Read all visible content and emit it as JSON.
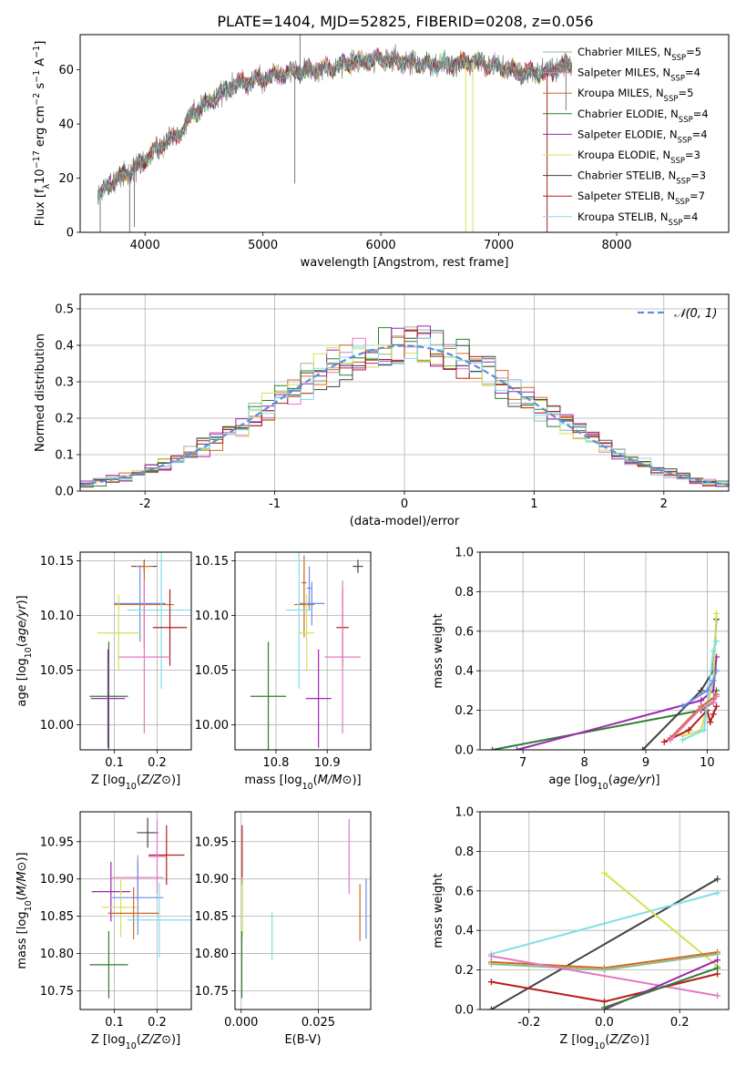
{
  "figure": {
    "title": "PLATE=1404, MJD=52825, FIBERID=0208, z=0.056"
  },
  "colors": {
    "Chabrier MILES": "#8fbc8f",
    "Salpeter MILES": "#e377c2",
    "Kroupa MILES": "#d2691e",
    "Chabrier ELODIE": "#2e7d32",
    "Salpeter ELODIE": "#9c27b0",
    "Kroupa ELODIE": "#d4e157",
    "Chabrier STELIB": "#424242",
    "Salpeter STELIB": "#b71c1c",
    "Kroupa STELIB": "#80deea",
    "gaussian": "#5b8fd8",
    "extra blue": "#6a8ee8"
  },
  "chart_data": [
    {
      "id": "spectrum",
      "type": "line",
      "xlabel": "wavelength [Angstrom, rest frame]",
      "ylabel": "Flux [f_λ10^-17 erg cm^-2 s^-1 A^-1]",
      "xlim": [
        3450,
        8950
      ],
      "ylim": [
        0,
        73
      ],
      "xticks": [
        4000,
        5000,
        6000,
        7000,
        8000
      ],
      "yticks": [
        0,
        20,
        40,
        60
      ],
      "grid": false,
      "legend_placement": "top-right",
      "legend": [
        {
          "model": "Chabrier MILES",
          "label": "Chabrier MILES, N_SSP=5"
        },
        {
          "model": "Salpeter MILES",
          "label": "Salpeter MILES, N_SSP=4"
        },
        {
          "model": "Kroupa MILES",
          "label": "Kroupa MILES, N_SSP=5"
        },
        {
          "model": "Chabrier ELODIE",
          "label": "Chabrier ELODIE, N_SSP=4"
        },
        {
          "model": "Salpeter ELODIE",
          "label": "Salpeter ELODIE, N_SSP=4"
        },
        {
          "model": "Kroupa ELODIE",
          "label": "Kroupa ELODIE, N_SSP=3"
        },
        {
          "model": "Chabrier STELIB",
          "label": "Chabrier STELIB, N_SSP=3"
        },
        {
          "model": "Salpeter STELIB",
          "label": "Salpeter STELIB, N_SSP=7"
        },
        {
          "model": "Kroupa STELIB",
          "label": "Kroupa STELIB, N_SSP=4"
        }
      ],
      "continuum": {
        "x": [
          3600,
          3700,
          3800,
          3900,
          4000,
          4100,
          4200,
          4300,
          4400,
          4600,
          4800,
          5000,
          5200,
          5400,
          5600,
          5800,
          6000,
          6200,
          6400,
          6600,
          6800,
          7000,
          7200,
          7400,
          7600
        ],
        "y": [
          13,
          18,
          21,
          23,
          27,
          31,
          34,
          37,
          44,
          50,
          55,
          57,
          59,
          60,
          61,
          63,
          64,
          63,
          62,
          62,
          63,
          61,
          59,
          59,
          62
        ]
      },
      "spikes": [
        {
          "x": 3620,
          "y": 0
        },
        {
          "x": 3870,
          "y": 0
        },
        {
          "x": 3910,
          "y": 2
        },
        {
          "x": 5270,
          "y": 18
        },
        {
          "x": 5315,
          "y": 73
        },
        {
          "x": 6720,
          "y": 0
        },
        {
          "x": 6780,
          "y": 0
        },
        {
          "x": 7410,
          "y": 0
        },
        {
          "x": 7570,
          "y": 45
        }
      ]
    },
    {
      "id": "residuals",
      "type": "histogram",
      "xlabel": "(data-model)/error",
      "ylabel": "Normed distribution",
      "xlim": [
        -2.5,
        2.5
      ],
      "ylim": [
        0,
        0.54
      ],
      "xticks": [
        -2,
        -1,
        0,
        1,
        2
      ],
      "yticks": [
        0.0,
        0.1,
        0.2,
        0.3,
        0.4,
        0.5
      ],
      "grid": true,
      "legend_placement": "top-right",
      "gaussian_label": "𝒩(0, 1)",
      "bin_width": 0.1
    },
    {
      "id": "age_vs_Z",
      "type": "errorbar",
      "xlabel": "Z [log10(Z/Z⊙)]",
      "ylabel": "age [log10(age/yr)]",
      "xlim": [
        0.02,
        0.28
      ],
      "ylim": [
        9.977,
        10.158
      ],
      "xticks": [
        0.1,
        0.2
      ],
      "yticks": [
        10.0,
        10.05,
        10.1,
        10.15
      ],
      "grid": true,
      "points": [
        {
          "model": "Chabrier STELIB",
          "x": 0.17,
          "xerr": 0.03,
          "y": 10.145,
          "yerr": 0.006
        },
        {
          "model": "Kroupa MILES",
          "x": 0.17,
          "xerr": 0.02,
          "y": 10.145,
          "yerr": 0.005
        },
        {
          "model": "extra blue",
          "x": 0.16,
          "xerr": 0.06,
          "y": 10.111,
          "yerr": 0.035
        },
        {
          "model": "Kroupa MILES",
          "x": 0.17,
          "xerr": 0.07,
          "y": 10.11,
          "yerr": 0.04
        },
        {
          "model": "Kroupa STELIB",
          "x": 0.21,
          "xerr": 0.08,
          "y": 10.105,
          "yerr": 0.072
        },
        {
          "model": "Salpeter STELIB",
          "x": 0.23,
          "xerr": 0.04,
          "y": 10.089,
          "yerr": 0.035
        },
        {
          "model": "Kroupa ELODIE",
          "x": 0.11,
          "xerr": 0.05,
          "y": 10.084,
          "yerr": 0.035
        },
        {
          "model": "Salpeter MILES",
          "x": 0.17,
          "xerr": 0.06,
          "y": 10.062,
          "yerr": 0.07
        },
        {
          "model": "Chabrier ELODIE",
          "x": 0.087,
          "xerr": 0.045,
          "y": 10.026,
          "yerr": 0.05
        },
        {
          "model": "Salpeter ELODIE",
          "x": 0.085,
          "xerr": 0.04,
          "y": 10.024,
          "yerr": 0.045
        }
      ]
    },
    {
      "id": "age_vs_mass",
      "type": "errorbar",
      "xlabel": "mass [log10(M/M⊙)]",
      "ylabel": "",
      "xlim": [
        10.72,
        10.985
      ],
      "ylim": [
        9.977,
        10.158
      ],
      "xticks": [
        10.8,
        10.9
      ],
      "yticks": [
        10.0,
        10.05,
        10.1,
        10.15
      ],
      "grid": true,
      "points": [
        {
          "model": "Chabrier STELIB",
          "x": 10.96,
          "xerr": 0.01,
          "y": 10.145,
          "yerr": 0.006
        },
        {
          "model": "Kroupa MILES",
          "x": 10.855,
          "xerr": 0.005,
          "y": 10.13,
          "yerr": 0.025
        },
        {
          "model": "extra blue",
          "x": 10.865,
          "xerr": 0.005,
          "y": 10.125,
          "yerr": 0.02
        },
        {
          "model": "Kroupa MILES",
          "x": 10.855,
          "xerr": 0.02,
          "y": 10.11,
          "yerr": 0.03
        },
        {
          "model": "extra blue",
          "x": 10.87,
          "xerr": 0.025,
          "y": 10.111,
          "yerr": 0.02
        },
        {
          "model": "Kroupa STELIB",
          "x": 10.845,
          "xerr": 0.025,
          "y": 10.105,
          "yerr": 0.072
        },
        {
          "model": "Salpeter STELIB",
          "x": 10.93,
          "xerr": 0.012,
          "y": 10.089,
          "yerr": 0.035
        },
        {
          "model": "Kroupa ELODIE",
          "x": 10.86,
          "xerr": 0.015,
          "y": 10.084,
          "yerr": 0.035
        },
        {
          "model": "Salpeter MILES",
          "x": 10.93,
          "xerr": 0.035,
          "y": 10.062,
          "yerr": 0.07
        },
        {
          "model": "Chabrier ELODIE",
          "x": 10.785,
          "xerr": 0.035,
          "y": 10.026,
          "yerr": 0.05
        },
        {
          "model": "Salpeter ELODIE",
          "x": 10.883,
          "xerr": 0.025,
          "y": 10.024,
          "yerr": 0.045
        }
      ]
    },
    {
      "id": "weight_vs_age",
      "type": "line",
      "xlabel": "age [log10(age/yr)]",
      "ylabel": "mass weight",
      "xlim": [
        6.3,
        10.35
      ],
      "ylim": [
        0,
        1.0
      ],
      "xticks": [
        7,
        8,
        9,
        10
      ],
      "yticks": [
        0.0,
        0.2,
        0.4,
        0.6,
        0.8,
        1.0
      ],
      "grid": true,
      "series": [
        {
          "model": "Chabrier ELODIE",
          "points": [
            [
              6.5,
              0.0
            ],
            [
              9.9,
              0.2
            ],
            [
              10.1,
              0.24
            ],
            [
              10.15,
              0.3
            ]
          ]
        },
        {
          "model": "Salpeter ELODIE",
          "points": [
            [
              6.9,
              0.0
            ],
            [
              9.9,
              0.25
            ],
            [
              10.1,
              0.3
            ],
            [
              10.15,
              0.47
            ]
          ]
        },
        {
          "model": "Chabrier STELIB",
          "points": [
            [
              8.95,
              0.0
            ],
            [
              9.9,
              0.3
            ],
            [
              10.1,
              0.4
            ],
            [
              10.15,
              0.66
            ]
          ]
        },
        {
          "model": "Kroupa ELODIE",
          "points": [
            [
              9.6,
              0.07
            ],
            [
              9.9,
              0.1
            ],
            [
              10.1,
              0.35
            ],
            [
              10.15,
              0.69
            ]
          ]
        },
        {
          "model": "Salpeter STELIB",
          "points": [
            [
              9.3,
              0.04
            ],
            [
              9.7,
              0.1
            ],
            [
              10.0,
              0.2
            ],
            [
              10.05,
              0.14
            ],
            [
              10.1,
              0.18
            ],
            [
              10.15,
              0.22
            ]
          ]
        },
        {
          "model": "Kroupa STELIB",
          "points": [
            [
              9.6,
              0.05
            ],
            [
              9.95,
              0.1
            ],
            [
              10.1,
              0.5
            ],
            [
              10.15,
              0.55
            ]
          ]
        },
        {
          "model": "Kroupa MILES",
          "points": [
            [
              9.4,
              0.06
            ],
            [
              9.9,
              0.22
            ],
            [
              10.1,
              0.26
            ],
            [
              10.15,
              0.28
            ]
          ]
        },
        {
          "model": "Salpeter MILES",
          "points": [
            [
              9.4,
              0.05
            ],
            [
              9.9,
              0.21
            ],
            [
              10.1,
              0.24
            ],
            [
              10.15,
              0.27
            ]
          ]
        },
        {
          "model": "extra blue",
          "points": [
            [
              9.6,
              0.22
            ],
            [
              10.0,
              0.3
            ],
            [
              10.1,
              0.35
            ],
            [
              10.15,
              0.4
            ]
          ]
        }
      ]
    },
    {
      "id": "mass_vs_Z",
      "type": "errorbar",
      "xlabel": "Z [log10(Z/Z⊙)]",
      "ylabel": "mass [log10(M/M⊙)]",
      "xlim": [
        0.02,
        0.28
      ],
      "ylim": [
        10.725,
        10.99
      ],
      "xticks": [
        0.1,
        0.2
      ],
      "yticks": [
        10.75,
        10.8,
        10.85,
        10.9,
        10.95
      ],
      "grid": true,
      "points": [
        {
          "model": "Chabrier STELIB",
          "x": 0.178,
          "xerr": 0.025,
          "y": 10.962,
          "yerr": 0.02
        },
        {
          "model": "Salpeter STELIB",
          "x": 0.222,
          "xerr": 0.042,
          "y": 10.932,
          "yerr": 0.04
        },
        {
          "model": "Salpeter MILES",
          "x": 0.2,
          "xerr": 0.02,
          "y": 10.93,
          "yerr": 0.05
        },
        {
          "model": "Salpeter ELODIE",
          "x": 0.092,
          "xerr": 0.045,
          "y": 10.883,
          "yerr": 0.04
        },
        {
          "model": "Salpeter MILES",
          "x": 0.155,
          "xerr": 0.06,
          "y": 10.902,
          "yerr": 0.03
        },
        {
          "model": "extra blue",
          "x": 0.155,
          "xerr": 0.06,
          "y": 10.875,
          "yerr": 0.05
        },
        {
          "model": "Kroupa ELODIE",
          "x": 0.115,
          "xerr": 0.045,
          "y": 10.862,
          "yerr": 0.04
        },
        {
          "model": "Kroupa MILES",
          "x": 0.145,
          "xerr": 0.06,
          "y": 10.854,
          "yerr": 0.035
        },
        {
          "model": "Kroupa STELIB",
          "x": 0.205,
          "xerr": 0.075,
          "y": 10.845,
          "yerr": 0.05
        },
        {
          "model": "Chabrier ELODIE",
          "x": 0.087,
          "xerr": 0.045,
          "y": 10.785,
          "yerr": 0.045
        }
      ]
    },
    {
      "id": "mass_vs_EBV",
      "type": "errorbar",
      "xlabel": "E(B-V)",
      "ylabel": "",
      "xlim": [
        -0.002,
        0.042
      ],
      "ylim": [
        10.725,
        10.99
      ],
      "xticks": [
        0.0,
        0.025
      ],
      "yticks": [
        10.75,
        10.8,
        10.85,
        10.9,
        10.95
      ],
      "grid": true,
      "points": [
        {
          "model": "Salpeter STELIB",
          "x": 0.0003,
          "xerr": 0,
          "y": 10.932,
          "yerr": 0.04
        },
        {
          "model": "Kroupa ELODIE",
          "x": 0.0004,
          "xerr": 0,
          "y": 10.862,
          "yerr": 0.04
        },
        {
          "model": "Chabrier ELODIE",
          "x": 0.0002,
          "xerr": 0,
          "y": 10.785,
          "yerr": 0.045
        },
        {
          "model": "Kroupa STELIB",
          "x": 0.01,
          "xerr": 0,
          "y": 10.823,
          "yerr": 0.032
        },
        {
          "model": "Salpeter MILES",
          "x": 0.035,
          "xerr": 0,
          "y": 10.93,
          "yerr": 0.05
        },
        {
          "model": "Kroupa MILES",
          "x": 0.0385,
          "xerr": 0,
          "y": 10.855,
          "yerr": 0.038
        },
        {
          "model": "extra blue",
          "x": 0.0405,
          "xerr": 0,
          "y": 10.86,
          "yerr": 0.04
        }
      ]
    },
    {
      "id": "weight_vs_Z",
      "type": "line",
      "xlabel": "Z [log10(Z/Z⊙)]",
      "ylabel": "mass weight",
      "xlim": [
        -0.33,
        0.33
      ],
      "ylim": [
        0,
        1.0
      ],
      "xticks": [
        -0.2,
        0.0,
        0.2
      ],
      "yticks": [
        0.0,
        0.2,
        0.4,
        0.6,
        0.8,
        1.0
      ],
      "grid": true,
      "series": [
        {
          "model": "Chabrier STELIB",
          "points": [
            [
              -0.3,
              0.0
            ],
            [
              0.3,
              0.66
            ]
          ]
        },
        {
          "model": "Kroupa STELIB",
          "points": [
            [
              -0.3,
              0.28
            ],
            [
              0.3,
              0.59
            ]
          ]
        },
        {
          "model": "Kroupa ELODIE",
          "points": [
            [
              0.0,
              0.69
            ],
            [
              0.3,
              0.22
            ]
          ]
        },
        {
          "model": "Kroupa MILES",
          "points": [
            [
              -0.3,
              0.24
            ],
            [
              0.0,
              0.21
            ],
            [
              0.3,
              0.29
            ]
          ]
        },
        {
          "model": "Chabrier MILES",
          "points": [
            [
              -0.3,
              0.23
            ],
            [
              0.0,
              0.2
            ],
            [
              0.3,
              0.28
            ]
          ]
        },
        {
          "model": "Salpeter MILES",
          "points": [
            [
              -0.3,
              0.27
            ],
            [
              0.3,
              0.07
            ]
          ]
        },
        {
          "model": "Salpeter STELIB",
          "points": [
            [
              -0.3,
              0.14
            ],
            [
              0.0,
              0.04
            ],
            [
              0.3,
              0.18
            ]
          ]
        },
        {
          "model": "Salpeter ELODIE",
          "points": [
            [
              0.0,
              0.0
            ],
            [
              0.3,
              0.25
            ]
          ]
        },
        {
          "model": "Chabrier ELODIE",
          "points": [
            [
              0.0,
              0.01
            ],
            [
              0.3,
              0.21
            ]
          ]
        }
      ]
    }
  ]
}
